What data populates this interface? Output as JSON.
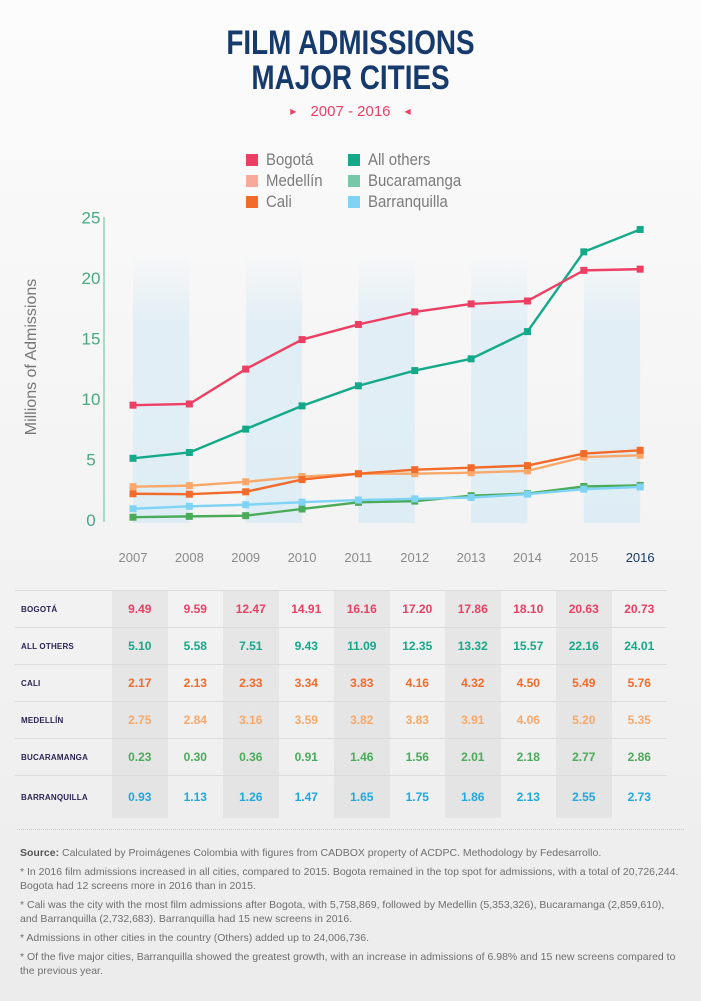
{
  "title_line1": "FILM ADMISSIONS",
  "title_line2": "MAJOR CITIES",
  "subtitle": "2007 - 2016",
  "legend": [
    {
      "label": "Bogotá",
      "color": "#ec3f63"
    },
    {
      "label": "All others",
      "color": "#14a989"
    },
    {
      "label": "Medellín",
      "color": "#f7a99a"
    },
    {
      "label": "Bucaramanga",
      "color": "#76c8a8"
    },
    {
      "label": "Cali",
      "color": "#f36b2a"
    },
    {
      "label": "Barranquilla",
      "color": "#7fd3f5"
    }
  ],
  "chart_data": {
    "type": "line",
    "title": "Film Admissions Major Cities",
    "subtitle": "2007 - 2016",
    "xlabel": "",
    "ylabel": "Millions of Admissions",
    "x": [
      "2007",
      "2008",
      "2009",
      "2010",
      "2011",
      "2012",
      "2013",
      "2014",
      "2015",
      "2016"
    ],
    "ylim": [
      0,
      25
    ],
    "yticks": [
      0,
      5,
      10,
      15,
      20,
      25
    ],
    "highlight_x": "2016",
    "grid": false,
    "legend_position": "top-center",
    "series": [
      {
        "name": "Bogotá",
        "color": "#ec3f63",
        "values": [
          9.49,
          9.59,
          12.47,
          14.91,
          16.16,
          17.2,
          17.86,
          18.1,
          20.63,
          20.73
        ]
      },
      {
        "name": "All others",
        "color": "#14a989",
        "values": [
          5.1,
          5.58,
          7.51,
          9.43,
          11.09,
          12.35,
          13.32,
          15.57,
          22.16,
          24.01
        ]
      },
      {
        "name": "Medellín",
        "color": "#f9a86a",
        "values": [
          2.75,
          2.84,
          3.16,
          3.59,
          3.82,
          3.83,
          3.91,
          4.06,
          5.2,
          5.35
        ]
      },
      {
        "name": "Bucaramanga",
        "color": "#4aab5a",
        "values": [
          0.23,
          0.3,
          0.36,
          0.91,
          1.46,
          1.56,
          2.01,
          2.18,
          2.77,
          2.86
        ]
      },
      {
        "name": "Cali",
        "color": "#f36b2a",
        "values": [
          2.17,
          2.13,
          2.33,
          3.34,
          3.83,
          4.16,
          4.32,
          4.5,
          5.49,
          5.76
        ]
      },
      {
        "name": "Barranquilla",
        "color": "#7fd3f5",
        "values": [
          0.93,
          1.13,
          1.26,
          1.47,
          1.65,
          1.75,
          1.86,
          2.13,
          2.55,
          2.73
        ]
      }
    ]
  },
  "table": {
    "rows": [
      {
        "label": "BOGOTÁ",
        "color": "#ec3f63",
        "values": [
          "9.49",
          "9.59",
          "12.47",
          "14.91",
          "16.16",
          "17.20",
          "17.86",
          "18.10",
          "20.63",
          "20.73"
        ]
      },
      {
        "label": "ALL OTHERS",
        "color": "#14a989",
        "values": [
          "5.10",
          "5.58",
          "7.51",
          "9.43",
          "11.09",
          "12.35",
          "13.32",
          "15.57",
          "22.16",
          "24.01"
        ]
      },
      {
        "label": "CALI",
        "color": "#f36b2a",
        "values": [
          "2.17",
          "2.13",
          "2.33",
          "3.34",
          "3.83",
          "4.16",
          "4.32",
          "4.50",
          "5.49",
          "5.76"
        ]
      },
      {
        "label": "MEDELLÍN",
        "color": "#f7a869",
        "values": [
          "2.75",
          "2.84",
          "3.16",
          "3.59",
          "3.82",
          "3.83",
          "3.91",
          "4.06",
          "5.20",
          "5.35"
        ]
      },
      {
        "label": "BUCARAMANGA",
        "color": "#4aab5a",
        "values": [
          "0.23",
          "0.30",
          "0.36",
          "0.91",
          "1.46",
          "1.56",
          "2.01",
          "2.18",
          "2.77",
          "2.86"
        ]
      },
      {
        "label": "BARRANQUILLA",
        "color": "#1fa8e0",
        "values": [
          "0.93",
          "1.13",
          "1.26",
          "1.47",
          "1.65",
          "1.75",
          "1.86",
          "2.13",
          "2.55",
          "2.73"
        ]
      }
    ]
  },
  "notes": {
    "source_label": "Source:",
    "source_text": " Calculated by Proimágenes Colombia with figures from CADBOX property of ACDPC. Methodology by Fedesarrollo.",
    "items": [
      "* In 2016 film admissions increased in all cities, compared to 2015.  Bogota remained in the top spot for admissions, with a total of 20,726,244. Bogota had 12 screens more in 2016 than in 2015.",
      "* Cali was the city with the most film admissions after Bogota, with 5,758,869, followed by Medellin (5,353,326), Bucaramanga (2,859,610), and Barranquilla (2,732,683). Barranquilla had 15 new screens in 2016.",
      "* Admissions in other cities in the country (Others) added up to 24,006,736.",
      "* Of the five major cities, Barranquilla showed the greatest growth, with an increase in admissions of 6.98% and 15 new screens compared to the previous year."
    ]
  }
}
